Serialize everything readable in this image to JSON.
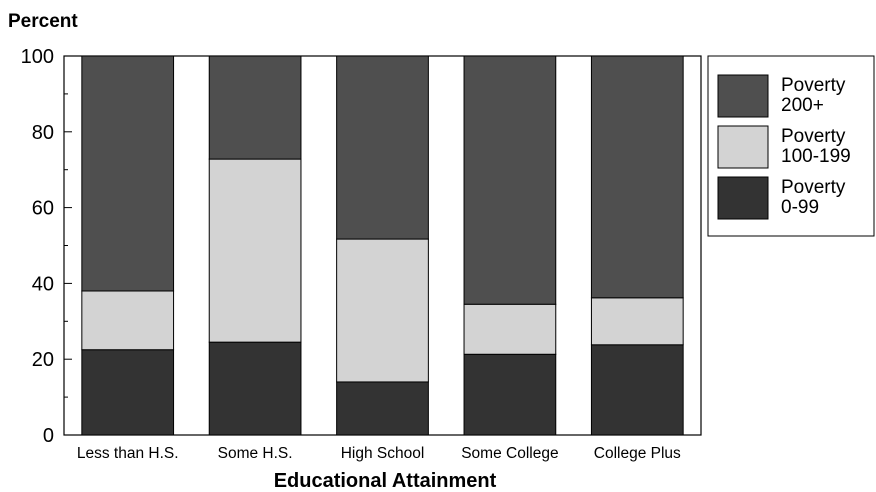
{
  "chart_data": {
    "type": "bar",
    "stacked": true,
    "ylabel": "Percent",
    "xlabel": "Educational Attainment",
    "ylim": [
      0,
      100
    ],
    "yticks": [
      "0",
      "20",
      "40",
      "60",
      "80",
      "100"
    ],
    "grid": false,
    "legend_position": "right",
    "categories": [
      "Less than H.S.",
      "Some H.S.",
      "High School",
      "Some College",
      "College Plus"
    ],
    "series": [
      {
        "name": "Poverty 0-99",
        "legend_lines": [
          "Poverty",
          "0-99"
        ],
        "color": "#333333",
        "values": [
          22.5,
          24.5,
          14,
          21.3,
          23.8
        ]
      },
      {
        "name": "Poverty 100-199",
        "legend_lines": [
          "Poverty",
          "100-199"
        ],
        "color": "#d3d3d3",
        "values": [
          15.5,
          48.3,
          37.7,
          13.2,
          12.4
        ]
      },
      {
        "name": "Poverty 200+",
        "legend_lines": [
          "Poverty",
          "200+"
        ],
        "color": "#4f4f4f",
        "values": [
          62,
          27.2,
          48.3,
          65.5,
          63.8
        ]
      }
    ]
  }
}
